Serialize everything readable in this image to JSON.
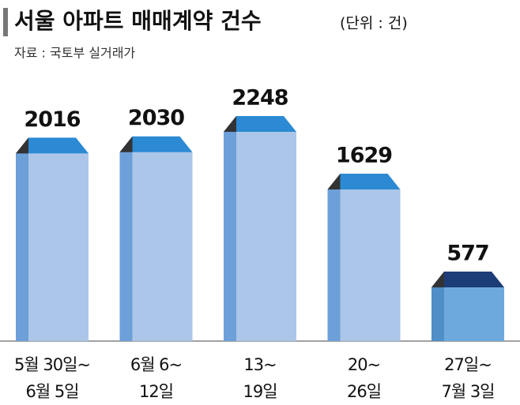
{
  "chart_data": {
    "type": "bar",
    "title": "서울 아파트 매매계약 건수",
    "unit": "(단위 : 건)",
    "source": "자료 : 국토부 실거래가",
    "categories": [
      [
        "5월 30일~",
        "6월 5일"
      ],
      [
        "6월 6~",
        "12일"
      ],
      [
        "13~",
        "19일"
      ],
      [
        "20~",
        "26일"
      ],
      [
        "27일~",
        "7월 3일"
      ]
    ],
    "values": [
      2016,
      2030,
      2248,
      1629,
      577
    ],
    "colors": [
      "#abc6e9",
      "#abc6e9",
      "#abc6e9",
      "#abc6e9",
      "#6ea9de"
    ],
    "side_colors": [
      "#6d9fd8",
      "#6d9fd8",
      "#6d9fd8",
      "#6d9fd8",
      "#4f8ec6"
    ],
    "top_colors": [
      "#2b8ad3",
      "#2b8ad3",
      "#2b8ad3",
      "#2b8ad3",
      "#1d3d78"
    ]
  }
}
